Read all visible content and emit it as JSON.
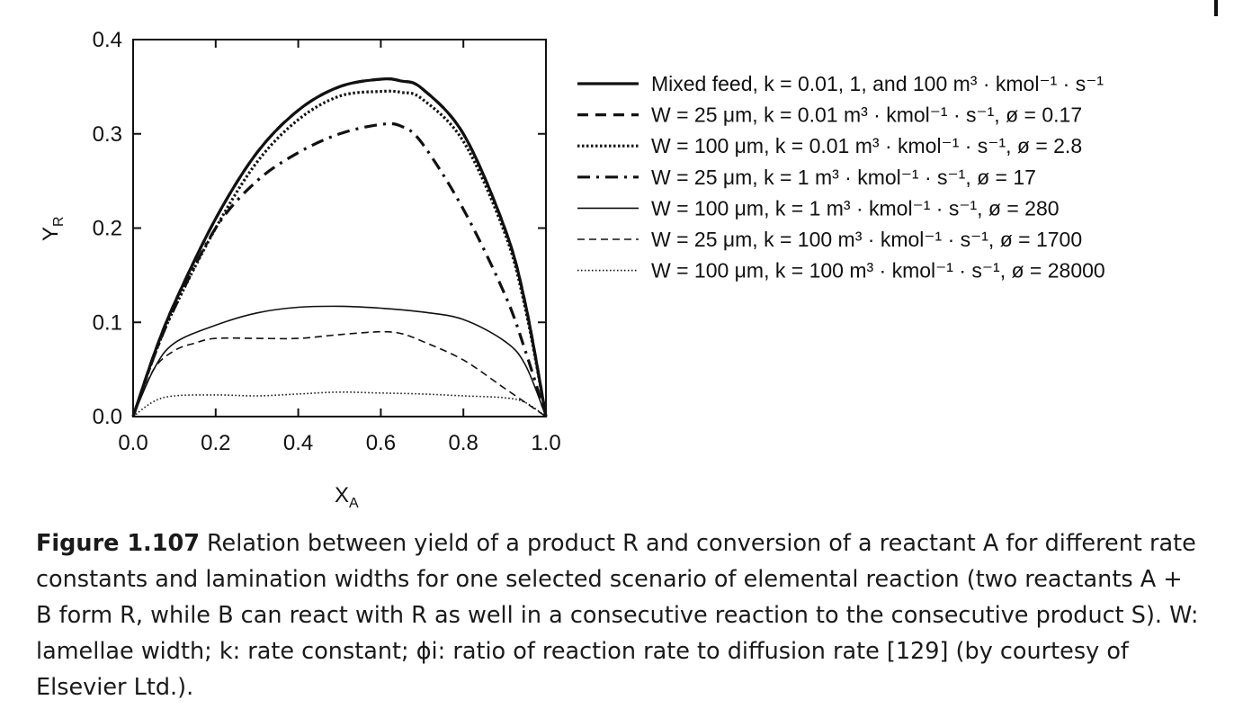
{
  "chart_data": {
    "type": "line",
    "xlabel": "X",
    "xlabel_sub": "A",
    "ylabel": "Y",
    "ylabel_sub": "R",
    "xlim": [
      0,
      1
    ],
    "ylim": [
      0,
      0.4
    ],
    "xticks": [
      "0.0",
      "0.2",
      "0.4",
      "0.6",
      "0.8",
      "1.0"
    ],
    "yticks": [
      "0.0",
      "0.1",
      "0.2",
      "0.3",
      "0.4"
    ],
    "grid": false,
    "legend_position": "right",
    "series": [
      {
        "name": "Mixed feed, k = 0.01, 1, and 100 m³ · kmol⁻¹ · s⁻¹",
        "style": "solid-thick",
        "x": [
          0,
          0.05,
          0.1,
          0.2,
          0.3,
          0.4,
          0.5,
          0.6,
          0.65,
          0.7,
          0.8,
          0.9,
          0.95,
          1.0
        ],
        "y": [
          0,
          0.065,
          0.12,
          0.21,
          0.28,
          0.325,
          0.35,
          0.358,
          0.356,
          0.348,
          0.3,
          0.2,
          0.12,
          0
        ]
      },
      {
        "name": "W = 25 μm, k = 0.01 m³ · kmol⁻¹ · s⁻¹, ø = 0.17",
        "style": "dashed-thick",
        "x": [
          0,
          0.05,
          0.1,
          0.2,
          0.3,
          0.4,
          0.5,
          0.6,
          0.65,
          0.7,
          0.8,
          0.9,
          0.95,
          1.0
        ],
        "y": [
          0,
          0.065,
          0.12,
          0.21,
          0.28,
          0.325,
          0.35,
          0.358,
          0.356,
          0.348,
          0.3,
          0.2,
          0.12,
          0
        ]
      },
      {
        "name": "W = 100 μm, k = 0.01 m³ · kmol⁻¹ · s⁻¹, ø = 2.8",
        "style": "dotted-thick",
        "x": [
          0,
          0.05,
          0.1,
          0.2,
          0.3,
          0.4,
          0.5,
          0.6,
          0.65,
          0.7,
          0.8,
          0.9,
          0.95,
          1.0
        ],
        "y": [
          0,
          0.063,
          0.115,
          0.2,
          0.27,
          0.315,
          0.34,
          0.345,
          0.344,
          0.337,
          0.292,
          0.195,
          0.115,
          0
        ]
      },
      {
        "name": "W = 25 μm, k = 1 m³ · kmol⁻¹ · s⁻¹, ø = 17",
        "style": "dashdot-thick",
        "x": [
          0,
          0.05,
          0.1,
          0.2,
          0.3,
          0.4,
          0.5,
          0.6,
          0.65,
          0.7,
          0.8,
          0.9,
          0.95,
          1.0
        ],
        "y": [
          0,
          0.063,
          0.115,
          0.2,
          0.25,
          0.28,
          0.3,
          0.31,
          0.308,
          0.29,
          0.22,
          0.13,
          0.07,
          0
        ]
      },
      {
        "name": "W = 100 μm, k = 1 m³ · kmol⁻¹ · s⁻¹, ø = 280",
        "style": "solid-thin",
        "x": [
          0,
          0.05,
          0.1,
          0.2,
          0.3,
          0.4,
          0.5,
          0.6,
          0.7,
          0.8,
          0.9,
          0.95,
          1.0
        ],
        "y": [
          0,
          0.05,
          0.078,
          0.097,
          0.11,
          0.116,
          0.117,
          0.115,
          0.111,
          0.103,
          0.08,
          0.055,
          0
        ]
      },
      {
        "name": "W = 25 μm, k = 100 m³ · kmol⁻¹ · s⁻¹, ø = 1700",
        "style": "dashed-thin",
        "x": [
          0,
          0.05,
          0.1,
          0.15,
          0.2,
          0.3,
          0.4,
          0.5,
          0.6,
          0.65,
          0.7,
          0.8,
          0.9,
          1.0
        ],
        "y": [
          0,
          0.05,
          0.07,
          0.078,
          0.083,
          0.083,
          0.083,
          0.087,
          0.09,
          0.088,
          0.08,
          0.06,
          0.03,
          0
        ]
      },
      {
        "name": "W = 100 μm, k = 100 m³ · kmol⁻¹ · s⁻¹, ø = 28000",
        "style": "dotted-thin",
        "x": [
          0,
          0.05,
          0.1,
          0.2,
          0.3,
          0.4,
          0.5,
          0.6,
          0.7,
          0.8,
          0.9,
          0.95,
          1.0
        ],
        "y": [
          0,
          0.016,
          0.022,
          0.023,
          0.022,
          0.024,
          0.026,
          0.025,
          0.024,
          0.022,
          0.02,
          0.015,
          0
        ]
      }
    ]
  },
  "caption": {
    "label": "Figure 1.107",
    "text": "Relation between yield of a product R and conversion of a reactant A for different rate constants and lamination widths for one selected scenario of elemental reaction (two reactants A + B form R, while B can react with R as well in a consecutive reaction to the consecutive product S). W: lamellae width; k: rate constant; ϕi: ratio of reaction rate to diffusion rate [129] (by courtesy of Elsevier Ltd.)."
  }
}
